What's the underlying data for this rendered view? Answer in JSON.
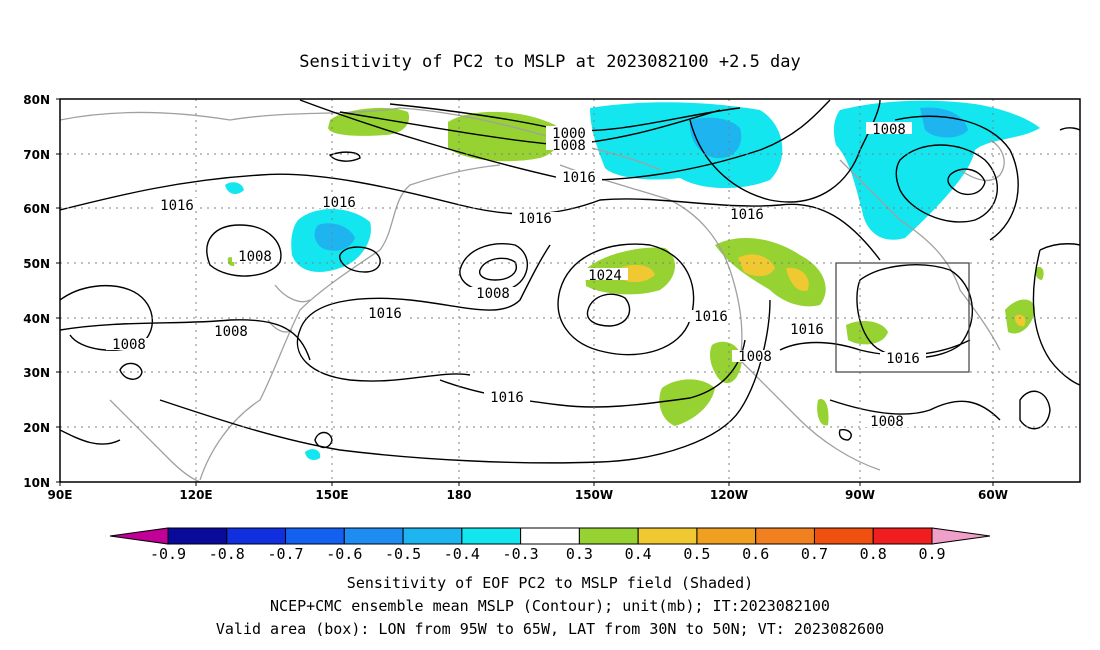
{
  "title": "Sensitivity of PC2 to MSLP at 2023082100 +2.5 day",
  "lat_ticks": [
    "80N",
    "70N",
    "60N",
    "50N",
    "40N",
    "30N",
    "20N",
    "10N"
  ],
  "lon_ticks": [
    "90E",
    "120E",
    "150E",
    "180",
    "150W",
    "120W",
    "90W",
    "60W"
  ],
  "contour_labels": [
    "1000",
    "1008",
    "1016",
    "1016",
    "1008",
    "1016",
    "1016",
    "1008",
    "1024",
    "1008",
    "1016",
    "1016",
    "1008",
    "1016",
    "1016",
    "1016",
    "1008",
    "1008",
    "1008",
    "1016"
  ],
  "colorbar": {
    "labels": [
      "-0.9",
      "-0.8",
      "-0.7",
      "-0.6",
      "-0.5",
      "-0.4",
      "-0.3",
      "0.3",
      "0.4",
      "0.5",
      "0.6",
      "0.7",
      "0.8",
      "0.9"
    ],
    "colors": [
      "#0a0a9a",
      "#1030e0",
      "#1460f0",
      "#1e8cf0",
      "#1eb4f0",
      "#14e6f0",
      "#ffffff",
      "#96d232",
      "#f0c832",
      "#f0a020",
      "#f08020",
      "#f05010",
      "#f01e1e"
    ],
    "low_end_color": "#c00096",
    "high_end_color": "#f0a0c8"
  },
  "captions": {
    "line1": "Sensitivity of EOF PC2 to MSLP field (Shaded)",
    "line2": "NCEP+CMC ensemble mean MSLP (Contour); unit(mb); IT:2023082100",
    "line3": "Valid area (box): LON from 95W to 65W, LAT from 30N to 50N; VT: 2023082600"
  },
  "valid_box": {
    "lon": [
      -95,
      -65
    ],
    "lat": [
      30,
      50
    ]
  },
  "colors": {
    "contour": "#000000",
    "coast": "#a0a0a0",
    "grid": "#808080"
  }
}
